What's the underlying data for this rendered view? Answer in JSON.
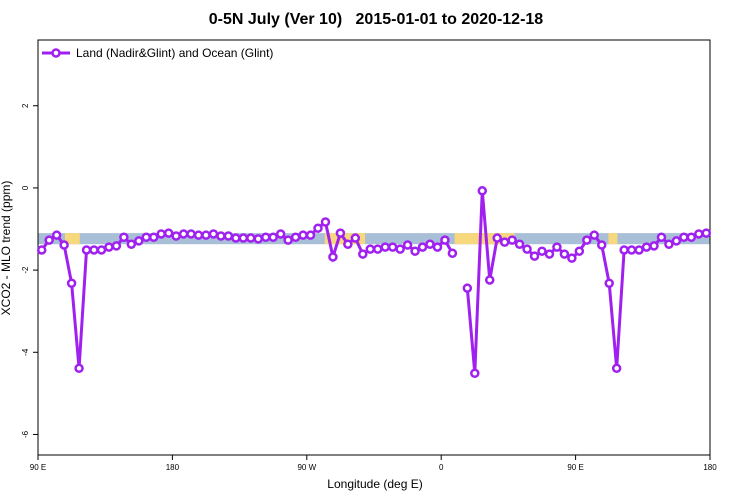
{
  "chart_data": {
    "type": "line",
    "title": "0-5N July (Ver 10)   2015-01-01 to 2020-12-18",
    "x_label": "Longitude (deg E)",
    "y_label": "XCO2 - MLO trend (ppm)",
    "x": [
      92.5,
      97.5,
      102.5,
      107.5,
      112.5,
      117.5,
      122.5,
      127.5,
      132.5,
      137.5,
      142.5,
      147.5,
      152.5,
      157.5,
      162.5,
      167.5,
      172.5,
      177.5,
      182.5,
      187.5,
      192.5,
      197.5,
      202.5,
      207.5,
      212.5,
      217.5,
      222.5,
      227.5,
      232.5,
      237.5,
      242.5,
      247.5,
      252.5,
      257.5,
      262.5,
      267.5,
      272.5,
      277.5,
      282.5,
      287.5,
      292.5,
      297.5,
      302.5,
      307.5,
      312.5,
      317.5,
      322.5,
      327.5,
      332.5,
      337.5,
      342.5,
      347.5,
      352.5,
      357.5,
      362.5,
      367.5,
      372.5,
      377.5,
      382.5,
      387.5,
      392.5,
      397.5,
      402.5,
      407.5,
      412.5,
      417.5,
      422.5,
      427.5,
      432.5,
      437.5,
      442.5,
      447.5,
      452.5,
      457.5,
      462.5,
      467.5,
      472.5,
      477.5,
      482.5,
      487.5,
      492.5,
      497.5,
      502.5,
      507.5,
      512.5,
      517.5,
      522.5,
      527.5,
      532.5,
      537.5
    ],
    "series": [
      {
        "name": "Land (Nadir&Glint) and Ocean (Glint)",
        "color": "#a020f0",
        "values": [
          -1.51,
          -1.27,
          -1.15,
          -1.39,
          -2.32,
          -4.39,
          -1.51,
          -1.51,
          -1.51,
          -1.44,
          -1.41,
          -1.2,
          -1.37,
          -1.29,
          -1.2,
          -1.2,
          -1.12,
          -1.1,
          -1.17,
          -1.12,
          -1.12,
          -1.15,
          -1.15,
          -1.12,
          -1.17,
          -1.17,
          -1.22,
          -1.22,
          -1.22,
          -1.24,
          -1.2,
          -1.2,
          -1.12,
          -1.27,
          -1.2,
          -1.15,
          -1.15,
          -0.98,
          -0.83,
          -1.68,
          -1.1,
          -1.37,
          -1.22,
          -1.61,
          -1.49,
          -1.49,
          -1.44,
          -1.44,
          -1.49,
          -1.39,
          -1.54,
          -1.44,
          -1.37,
          -1.44,
          -1.27,
          -1.59,
          null,
          -2.44,
          -4.51,
          -0.07,
          -2.24,
          -1.22,
          -1.32,
          -1.27,
          -1.37,
          -1.49,
          -1.66,
          -1.54,
          -1.61,
          -1.44,
          -1.61,
          -1.71,
          -1.54,
          -1.27,
          -1.15,
          -1.39,
          -2.32,
          -4.39,
          -1.51,
          -1.51,
          -1.51,
          -1.44,
          -1.41,
          -1.2,
          -1.37,
          -1.29,
          -1.2,
          -1.2,
          -1.12,
          -1.1
        ]
      }
    ],
    "xlim": [
      90,
      540
    ],
    "xticks": [
      {
        "value": 90,
        "label": "90 E"
      },
      {
        "value": 180,
        "label": "180"
      },
      {
        "value": 270,
        "label": "90 W"
      },
      {
        "value": 360,
        "label": "0"
      },
      {
        "value": 450,
        "label": "90 E"
      },
      {
        "value": 540,
        "label": "180"
      }
    ],
    "ylim": [
      -6.5,
      3.6
    ],
    "yticks": [
      2,
      0,
      -2,
      -4,
      -6
    ],
    "legend": "top-left",
    "reference_band": {
      "y": [
        -1.37,
        -1.1
      ],
      "color": "#a9bfd8",
      "land_color": "#f7d87c",
      "land_segments": [
        [
          108,
          118
        ],
        [
          282,
          309
        ],
        [
          369,
          409
        ],
        [
          472,
          478
        ]
      ]
    }
  }
}
